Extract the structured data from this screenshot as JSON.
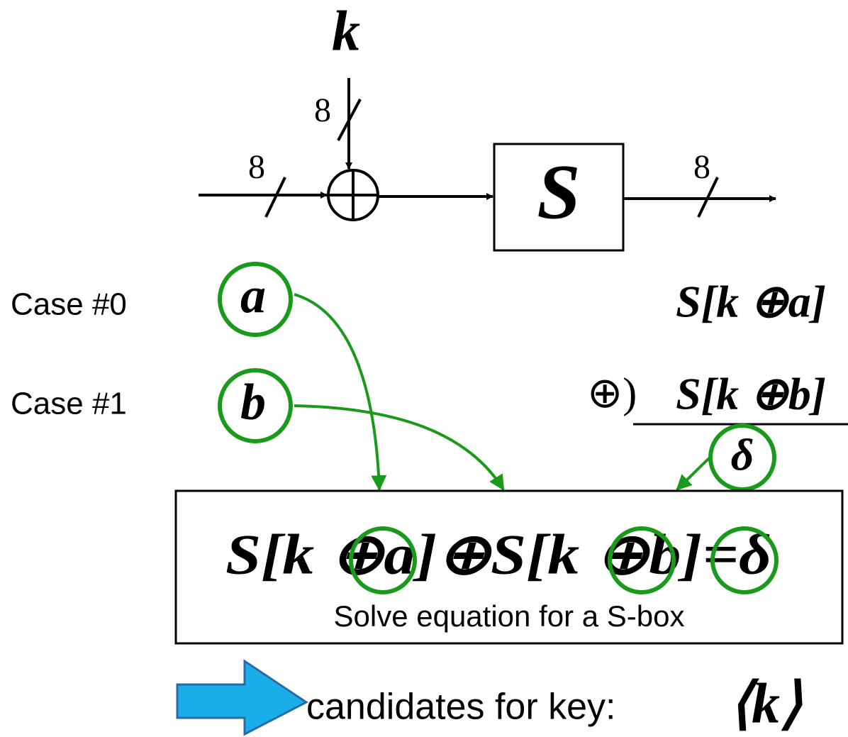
{
  "key_input": {
    "label": "k",
    "width": "8"
  },
  "plaintext_width": "8",
  "sbox": {
    "label": "S"
  },
  "output_width": "8",
  "cases": [
    {
      "label": "Case #0",
      "input": "a",
      "output": "S[k ⊕a]"
    },
    {
      "label": "Case #1",
      "input": "b",
      "output": "S[k ⊕b]"
    }
  ],
  "xor_operator": "⊕)",
  "difference": "δ",
  "equation": {
    "text": "S[k ⊕a]⊕S[k ⊕b]=δ",
    "caption": "Solve equation for a S-box"
  },
  "result": {
    "label": "candidates for key:",
    "value": "⟨k⟩"
  }
}
